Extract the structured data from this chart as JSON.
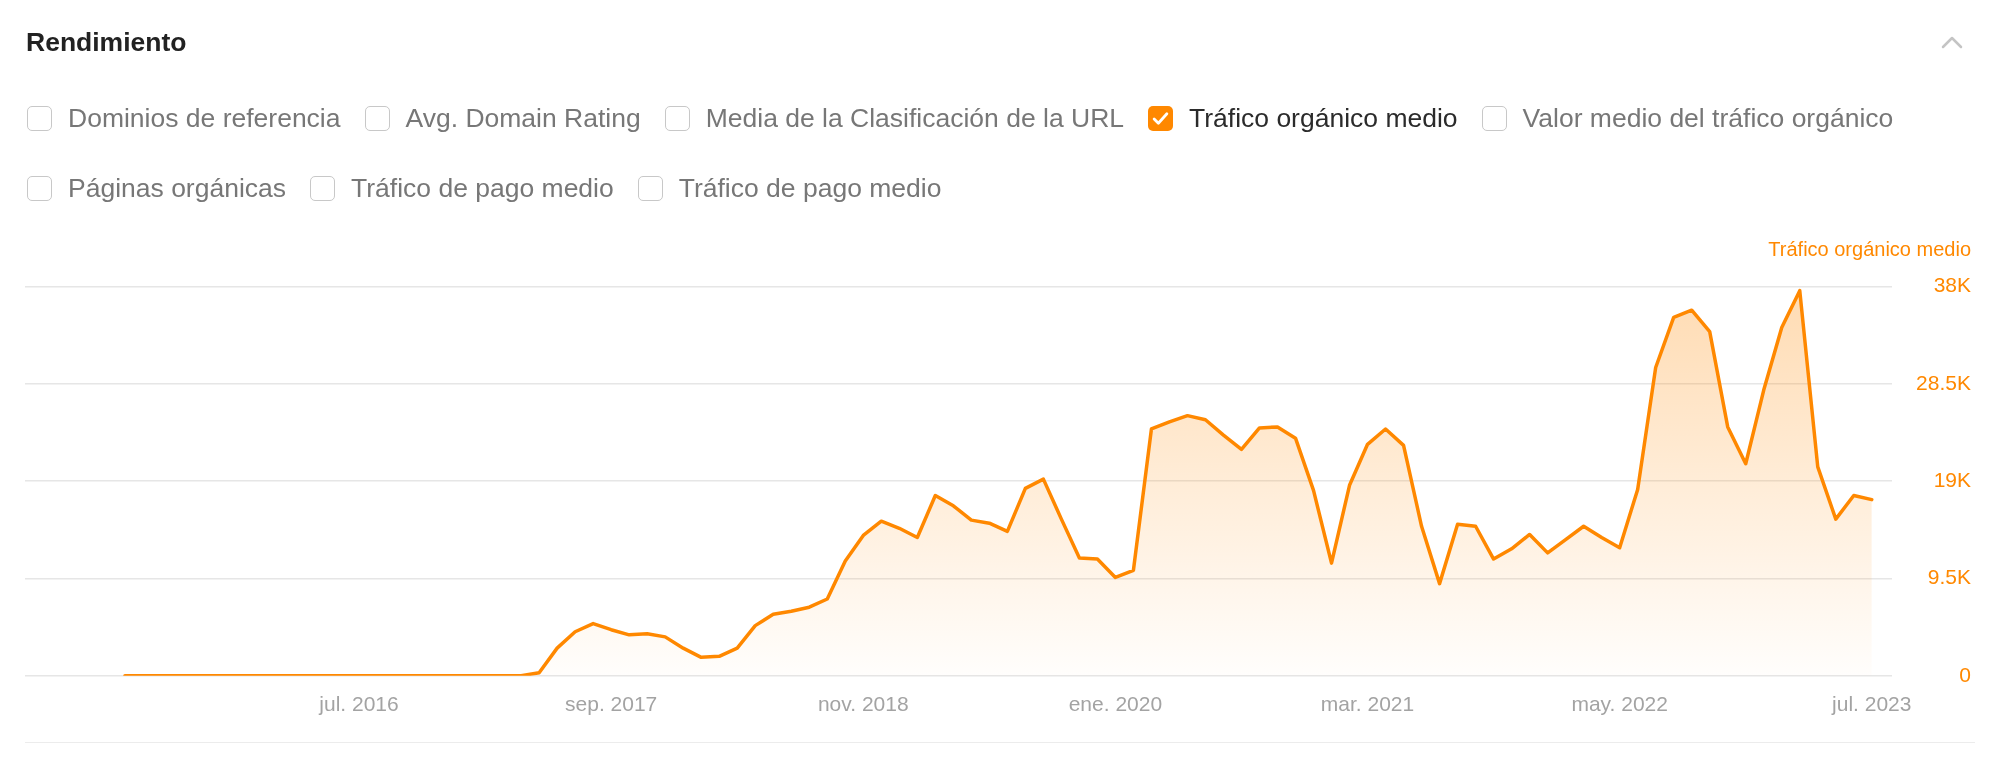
{
  "chart_data": {
    "type": "area",
    "title": "Rendimiento",
    "ylabel": "Tráfico orgánico medio",
    "x": [
      "2015-06",
      "2015-07",
      "2015-08",
      "2015-09",
      "2015-10",
      "2015-11",
      "2015-12",
      "2016-01",
      "2016-02",
      "2016-03",
      "2016-04",
      "2016-05",
      "2016-06",
      "2016-07",
      "2016-08",
      "2016-09",
      "2016-10",
      "2016-11",
      "2016-12",
      "2017-01",
      "2017-02",
      "2017-03",
      "2017-04",
      "2017-05",
      "2017-06",
      "2017-07",
      "2017-08",
      "2017-09",
      "2017-10",
      "2017-11",
      "2017-12",
      "2018-01",
      "2018-02",
      "2018-03",
      "2018-04",
      "2018-05",
      "2018-06",
      "2018-07",
      "2018-08",
      "2018-09",
      "2018-10",
      "2018-11",
      "2018-12",
      "2019-01",
      "2019-02",
      "2019-03",
      "2019-04",
      "2019-05",
      "2019-06",
      "2019-07",
      "2019-08",
      "2019-09",
      "2019-10",
      "2019-11",
      "2019-12",
      "2020-01",
      "2020-02",
      "2020-03",
      "2020-04",
      "2020-05",
      "2020-06",
      "2020-07",
      "2020-08",
      "2020-09",
      "2020-10",
      "2020-11",
      "2020-12",
      "2021-01",
      "2021-02",
      "2021-03",
      "2021-04",
      "2021-05",
      "2021-06",
      "2021-07",
      "2021-08",
      "2021-09",
      "2021-10",
      "2021-11",
      "2021-12",
      "2022-01",
      "2022-02",
      "2022-03",
      "2022-04",
      "2022-05",
      "2022-06",
      "2022-07",
      "2022-08",
      "2022-09",
      "2022-10",
      "2022-11",
      "2022-12",
      "2023-01",
      "2023-02",
      "2023-03",
      "2023-04",
      "2023-05",
      "2023-06",
      "2023-07"
    ],
    "series": [
      {
        "name": "Dominios de referencia",
        "values": [
          null,
          null,
          null,
          null,
          null,
          null,
          null,
          null,
          null,
          null,
          null,
          null,
          null,
          null,
          null,
          null,
          null,
          null,
          null,
          null,
          null,
          null,
          null,
          null,
          null,
          null,
          null,
          null,
          null,
          null,
          null,
          null,
          null,
          null,
          null,
          null,
          null,
          null,
          null,
          null,
          null,
          null,
          null,
          null,
          null,
          null,
          null,
          null,
          null,
          null,
          null,
          null,
          null,
          null,
          null,
          null,
          null,
          null,
          null,
          null,
          null,
          null,
          null,
          null,
          null,
          null,
          null,
          null,
          null,
          null,
          null,
          null,
          null,
          null,
          null,
          null,
          null,
          null,
          null,
          null,
          null,
          null,
          null,
          null,
          null,
          null,
          null,
          null,
          null,
          null,
          null,
          null,
          null,
          null,
          null,
          null,
          null,
          null
        ]
      },
      {
        "name": "Avg. Domain Rating",
        "values": [
          null,
          null,
          null,
          null,
          null,
          null,
          null,
          null,
          null,
          null,
          null,
          null,
          null,
          null,
          null,
          null,
          null,
          null,
          null,
          null,
          null,
          null,
          null,
          null,
          null,
          null,
          null,
          null,
          null,
          null,
          null,
          null,
          null,
          null,
          null,
          null,
          null,
          null,
          null,
          null,
          null,
          null,
          null,
          null,
          null,
          null,
          null,
          null,
          null,
          null,
          null,
          null,
          null,
          null,
          null,
          null,
          null,
          null,
          null,
          null,
          null,
          null,
          null,
          null,
          null,
          null,
          null,
          null,
          null,
          null,
          null,
          null,
          null,
          null,
          null,
          null,
          null,
          null,
          null,
          null,
          null,
          null,
          null,
          null,
          null,
          null,
          null,
          null,
          null,
          null,
          null,
          null,
          null,
          null,
          null,
          null,
          null,
          null
        ]
      },
      {
        "name": "Media de la Clasificación de la URL",
        "values": [
          null,
          null,
          null,
          null,
          null,
          null,
          null,
          null,
          null,
          null,
          null,
          null,
          null,
          null,
          null,
          null,
          null,
          null,
          null,
          null,
          null,
          null,
          null,
          null,
          null,
          null,
          null,
          null,
          null,
          null,
          null,
          null,
          null,
          null,
          null,
          null,
          null,
          null,
          null,
          null,
          null,
          null,
          null,
          null,
          null,
          null,
          null,
          null,
          null,
          null,
          null,
          null,
          null,
          null,
          null,
          null,
          null,
          null,
          null,
          null,
          null,
          null,
          null,
          null,
          null,
          null,
          null,
          null,
          null,
          null,
          null,
          null,
          null,
          null,
          null,
          null,
          null,
          null,
          null,
          null,
          null,
          null,
          null,
          null,
          null,
          null,
          null,
          null,
          null,
          null,
          null,
          null,
          null,
          null,
          null,
          null,
          null,
          null
        ]
      },
      {
        "name": "Tráfico orgánico medio",
        "color": "#ff8800",
        "values": [
          0,
          0,
          0,
          0,
          0,
          0,
          0,
          0,
          0,
          0,
          0,
          0,
          0,
          0,
          0,
          0,
          0,
          0,
          0,
          0,
          0,
          0,
          0,
          300,
          2700,
          4300,
          5100,
          4500,
          4000,
          4100,
          3800,
          2700,
          1800,
          1900,
          2700,
          4900,
          6000,
          6300,
          6700,
          7500,
          11200,
          13700,
          15100,
          14400,
          13500,
          17600,
          16600,
          15200,
          14900,
          14100,
          18300,
          19200,
          15300,
          11500,
          11400,
          9600,
          10300,
          24100,
          24800,
          25400,
          25000,
          23500,
          22100,
          24200,
          24300,
          23200,
          18100,
          11000,
          18600,
          22600,
          24100,
          22500,
          14600,
          9000,
          14800,
          14600,
          11400,
          12400,
          13800,
          12000,
          13300,
          14600,
          13500,
          12500,
          18200,
          30100,
          35000,
          35700,
          33600,
          24300,
          20700,
          27900,
          34000,
          37600,
          20400,
          15300,
          17600,
          17200
        ]
      },
      {
        "name": "Valor medio del tráfico orgánico",
        "values": [
          null,
          null,
          null,
          null,
          null,
          null,
          null,
          null,
          null,
          null,
          null,
          null,
          null,
          null,
          null,
          null,
          null,
          null,
          null,
          null,
          null,
          null,
          null,
          null,
          null,
          null,
          null,
          null,
          null,
          null,
          null,
          null,
          null,
          null,
          null,
          null,
          null,
          null,
          null,
          null,
          null,
          null,
          null,
          null,
          null,
          null,
          null,
          null,
          null,
          null,
          null,
          null,
          null,
          null,
          null,
          null,
          null,
          null,
          null,
          null,
          null,
          null,
          null,
          null,
          null,
          null,
          null,
          null,
          null,
          null,
          null,
          null,
          null,
          null,
          null,
          null,
          null,
          null,
          null,
          null,
          null,
          null,
          null,
          null,
          null,
          null,
          null,
          null,
          null,
          null,
          null,
          null,
          null,
          null,
          null,
          null,
          null,
          null
        ]
      },
      {
        "name": "Páginas orgánicas",
        "values": [
          null,
          null,
          null,
          null,
          null,
          null,
          null,
          null,
          null,
          null,
          null,
          null,
          null,
          null,
          null,
          null,
          null,
          null,
          null,
          null,
          null,
          null,
          null,
          null,
          null,
          null,
          null,
          null,
          null,
          null,
          null,
          null,
          null,
          null,
          null,
          null,
          null,
          null,
          null,
          null,
          null,
          null,
          null,
          null,
          null,
          null,
          null,
          null,
          null,
          null,
          null,
          null,
          null,
          null,
          null,
          null,
          null,
          null,
          null,
          null,
          null,
          null,
          null,
          null,
          null,
          null,
          null,
          null,
          null,
          null,
          null,
          null,
          null,
          null,
          null,
          null,
          null,
          null,
          null,
          null,
          null,
          null,
          null,
          null,
          null,
          null,
          null,
          null,
          null,
          null,
          null,
          null,
          null,
          null,
          null,
          null,
          null,
          null
        ]
      },
      {
        "name": "Tráfico de pago medio",
        "values": [
          null,
          null,
          null,
          null,
          null,
          null,
          null,
          null,
          null,
          null,
          null,
          null,
          null,
          null,
          null,
          null,
          null,
          null,
          null,
          null,
          null,
          null,
          null,
          null,
          null,
          null,
          null,
          null,
          null,
          null,
          null,
          null,
          null,
          null,
          null,
          null,
          null,
          null,
          null,
          null,
          null,
          null,
          null,
          null,
          null,
          null,
          null,
          null,
          null,
          null,
          null,
          null,
          null,
          null,
          null,
          null,
          null,
          null,
          null,
          null,
          null,
          null,
          null,
          null,
          null,
          null,
          null,
          null,
          null,
          null,
          null,
          null,
          null,
          null,
          null,
          null,
          null,
          null,
          null,
          null,
          null,
          null,
          null,
          null,
          null,
          null,
          null,
          null,
          null,
          null,
          null,
          null,
          null,
          null,
          null,
          null,
          null,
          null
        ]
      },
      {
        "name": "Tráfico de pago medio",
        "values": [
          null,
          null,
          null,
          null,
          null,
          null,
          null,
          null,
          null,
          null,
          null,
          null,
          null,
          null,
          null,
          null,
          null,
          null,
          null,
          null,
          null,
          null,
          null,
          null,
          null,
          null,
          null,
          null,
          null,
          null,
          null,
          null,
          null,
          null,
          null,
          null,
          null,
          null,
          null,
          null,
          null,
          null,
          null,
          null,
          null,
          null,
          null,
          null,
          null,
          null,
          null,
          null,
          null,
          null,
          null,
          null,
          null,
          null,
          null,
          null,
          null,
          null,
          null,
          null,
          null,
          null,
          null,
          null,
          null,
          null,
          null,
          null,
          null,
          null,
          null,
          null,
          null,
          null,
          null,
          null,
          null,
          null,
          null,
          null,
          null,
          null,
          null,
          null,
          null,
          null,
          null,
          null,
          null,
          null,
          null,
          null,
          null,
          null
        ]
      }
    ],
    "xlim": [
      "2014-12-15",
      "2023-08-05"
    ],
    "xticks": [
      {
        "value": "2016-07",
        "label": "jul. 2016"
      },
      {
        "value": "2017-09",
        "label": "sep. 2017"
      },
      {
        "value": "2018-11",
        "label": "nov. 2018"
      },
      {
        "value": "2020-01",
        "label": "ene. 2020"
      },
      {
        "value": "2021-03",
        "label": "mar. 2021"
      },
      {
        "value": "2022-05",
        "label": "may. 2022"
      },
      {
        "value": "2023-07",
        "label": "jul. 2023"
      }
    ],
    "ylim": [
      0,
      38000
    ],
    "yticks": [
      0,
      {
        "value": 9500,
        "label": "9.5K"
      },
      {
        "value": 19000,
        "label": "19K"
      },
      {
        "value": 28500,
        "label": "28.5K"
      },
      {
        "value": 38000,
        "label": "38K"
      }
    ],
    "grid": "y",
    "legend": "top left"
  }
}
